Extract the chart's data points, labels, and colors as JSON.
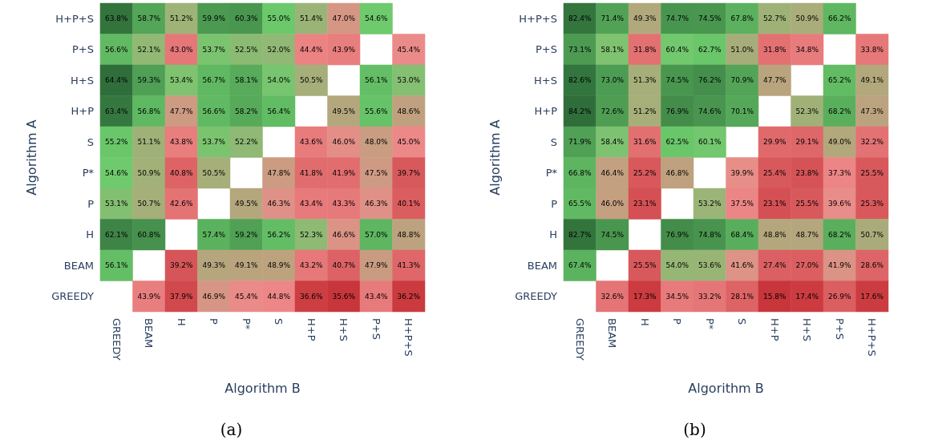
{
  "chart_data": [
    {
      "type": "heatmap",
      "title": "(a)",
      "xlabel": "Algorithm B",
      "ylabel": "Algorithm A",
      "colors": [
        "#c8353a",
        "#ee8a8a",
        "#6ccb6c",
        "#2f6e3a"
      ],
      "categories": [
        "GREEDY",
        "BEAM",
        "H",
        "P",
        "P*",
        "S",
        "H+P",
        "H+S",
        "P+S",
        "H+P+S"
      ],
      "y_categories": [
        "H+P+S",
        "P+S",
        "H+S",
        "H+P",
        "S",
        "P*",
        "P",
        "H",
        "BEAM",
        "GREEDY"
      ],
      "cells": [
        [
          63.8,
          58.7,
          51.2,
          59.9,
          60.3,
          55.0,
          51.4,
          47.0,
          54.6,
          null
        ],
        [
          56.6,
          52.1,
          43.0,
          53.7,
          52.5,
          52.0,
          44.4,
          43.9,
          null,
          45.4
        ],
        [
          64.4,
          59.3,
          53.4,
          56.7,
          58.1,
          54.0,
          50.5,
          null,
          56.1,
          53.0
        ],
        [
          63.4,
          56.8,
          47.7,
          56.6,
          58.2,
          56.4,
          null,
          49.5,
          55.6,
          48.6
        ],
        [
          55.2,
          51.1,
          43.8,
          53.7,
          52.2,
          null,
          43.6,
          46.0,
          48.0,
          45.0
        ],
        [
          54.6,
          50.9,
          40.8,
          50.5,
          null,
          47.8,
          41.8,
          41.9,
          47.5,
          39.7
        ],
        [
          53.1,
          50.7,
          42.6,
          null,
          49.5,
          46.3,
          43.4,
          43.3,
          46.3,
          40.1
        ],
        [
          62.1,
          60.8,
          null,
          57.4,
          59.2,
          56.2,
          52.3,
          46.6,
          57.0,
          48.8
        ],
        [
          56.1,
          null,
          39.2,
          49.3,
          49.1,
          48.9,
          43.2,
          40.7,
          47.9,
          41.3
        ],
        [
          null,
          43.9,
          37.9,
          46.9,
          45.4,
          44.8,
          36.6,
          35.6,
          43.4,
          36.2
        ]
      ],
      "cell_labels": [
        [
          "63.8%",
          "58.7%",
          "51.2%",
          "59.9%",
          "60.3%",
          "55.0%",
          "51.4%",
          "47.0%",
          "54.6%",
          null
        ],
        [
          "56.6%",
          "52.1%",
          "43.0%",
          "53.7%",
          "52.5%",
          "52.0%",
          "44.4%",
          "43.9%",
          null,
          "45.4%"
        ],
        [
          "64.4%",
          "59.3%",
          "53.4%",
          "56.7%",
          "58.1%",
          "54.0%",
          "50.5%",
          null,
          "56.1%",
          "53.0%"
        ],
        [
          "63.4%",
          "56.8%",
          "47.7%",
          "56.6%",
          "58.2%",
          "56.4%",
          null,
          "49.5%",
          "55.6%",
          "48.6%"
        ],
        [
          "55.2%",
          "51.1%",
          "43.8%",
          "53.7%",
          "52.2%",
          null,
          "43.6%",
          "46.0%",
          "48.0%",
          "45.0%"
        ],
        [
          "54.6%",
          "50.9%",
          "40.8%",
          "50.5%",
          null,
          "47.8%",
          "41.8%",
          "41.9%",
          "47.5%",
          "39.7%"
        ],
        [
          "53.1%",
          "50.7%",
          "42.6%",
          null,
          "49.5%",
          "46.3%",
          "43.4%",
          "43.3%",
          "46.3%",
          "40.1%"
        ],
        [
          "62.1%",
          "60.8%",
          null,
          "57.4%",
          "59.2%",
          "56.2%",
          "52.3%",
          "46.6%",
          "57.0%",
          "48.8%"
        ],
        [
          "56.1%",
          null,
          "39.2%",
          "49.3%",
          "49.1%",
          "48.9%",
          "43.2%",
          "40.7%",
          "47.9%",
          "41.3%"
        ],
        [
          null,
          "43.9%",
          "37.9%",
          "46.9%",
          "45.4%",
          "44.8%",
          "36.6%",
          "35.6%",
          "43.4%",
          "36.2%"
        ]
      ]
    },
    {
      "type": "heatmap",
      "title": "(b)",
      "xlabel": "Algorithm B",
      "ylabel": "Algorithm A",
      "colors": [
        "#c8353a",
        "#ee8a8a",
        "#6ccb6c",
        "#2f6e3a"
      ],
      "categories": [
        "GREEDY",
        "BEAM",
        "H",
        "P",
        "P*",
        "S",
        "H+P",
        "H+S",
        "P+S",
        "H+P+S"
      ],
      "y_categories": [
        "H+P+S",
        "P+S",
        "H+S",
        "H+P",
        "S",
        "P*",
        "P",
        "H",
        "BEAM",
        "GREEDY"
      ],
      "cells": [
        [
          82.4,
          71.4,
          49.3,
          74.7,
          74.5,
          67.8,
          52.7,
          50.9,
          66.2,
          null
        ],
        [
          73.1,
          58.1,
          31.8,
          60.4,
          62.7,
          51.0,
          31.8,
          34.8,
          null,
          33.8
        ],
        [
          82.6,
          73.0,
          51.3,
          74.5,
          76.2,
          70.9,
          47.7,
          null,
          65.2,
          49.1
        ],
        [
          84.2,
          72.6,
          51.2,
          76.9,
          74.6,
          70.1,
          null,
          52.3,
          68.2,
          47.3
        ],
        [
          71.9,
          58.4,
          31.6,
          62.5,
          60.1,
          null,
          29.9,
          29.1,
          49.0,
          32.2
        ],
        [
          66.8,
          46.4,
          25.2,
          46.8,
          null,
          39.9,
          25.4,
          23.8,
          37.3,
          25.5
        ],
        [
          65.5,
          46.0,
          23.1,
          null,
          53.2,
          37.5,
          23.1,
          25.5,
          39.6,
          25.3
        ],
        [
          82.7,
          74.5,
          null,
          76.9,
          74.8,
          68.4,
          48.8,
          48.7,
          68.2,
          50.7
        ],
        [
          67.4,
          null,
          25.5,
          54.0,
          53.6,
          41.6,
          27.4,
          27.0,
          41.9,
          28.6
        ],
        [
          null,
          32.6,
          17.3,
          34.5,
          33.2,
          28.1,
          15.8,
          17.4,
          26.9,
          17.6
        ]
      ],
      "cell_labels": [
        [
          "82.4%",
          "71.4%",
          "49.3%",
          "74.7%",
          "74.5%",
          "67.8%",
          "52.7%",
          "50.9%",
          "66.2%",
          null
        ],
        [
          "73.1%",
          "58.1%",
          "31.8%",
          "60.4%",
          "62.7%",
          "51.0%",
          "31.8%",
          "34.8%",
          null,
          "33.8%"
        ],
        [
          "82.6%",
          "73.0%",
          "51.3%",
          "74.5%",
          "76.2%",
          "70.9%",
          "47.7%",
          null,
          "65.2%",
          "49.1%"
        ],
        [
          "84.2%",
          "72.6%",
          "51.2%",
          "76.9%",
          "74.6%",
          "70.1%",
          null,
          "52.3%",
          "68.2%",
          "47.3%"
        ],
        [
          "71.9%",
          "58.4%",
          "31.6%",
          "62.5%",
          "60.1%",
          null,
          "29.9%",
          "29.1%",
          "49.0%",
          "32.2%"
        ],
        [
          "66.8%",
          "46.4%",
          "25.2%",
          "46.8%",
          null,
          "39.9%",
          "25.4%",
          "23.8%",
          "37.3%",
          "25.5%"
        ],
        [
          "65.5%",
          "46.0%",
          "23.1%",
          null,
          "53.2%",
          "37.5%",
          "23.1%",
          "25.5%",
          "39.6%",
          "25.3%"
        ],
        [
          "82.7%",
          "74.5%",
          null,
          "76.9%",
          "74.8%",
          "68.4%",
          "48.8%",
          "48.7%",
          "68.2%",
          "50.7%"
        ],
        [
          "67.4%",
          null,
          "25.5%",
          "54.0%",
          "53.6%",
          "41.6%",
          "27.4%",
          "27.0%",
          "41.9%",
          "28.6%"
        ],
        [
          null,
          "32.6%",
          "17.3%",
          "34.5%",
          "33.2%",
          "28.1%",
          "15.8%",
          "17.4%",
          "26.9%",
          "17.6%"
        ]
      ]
    }
  ]
}
